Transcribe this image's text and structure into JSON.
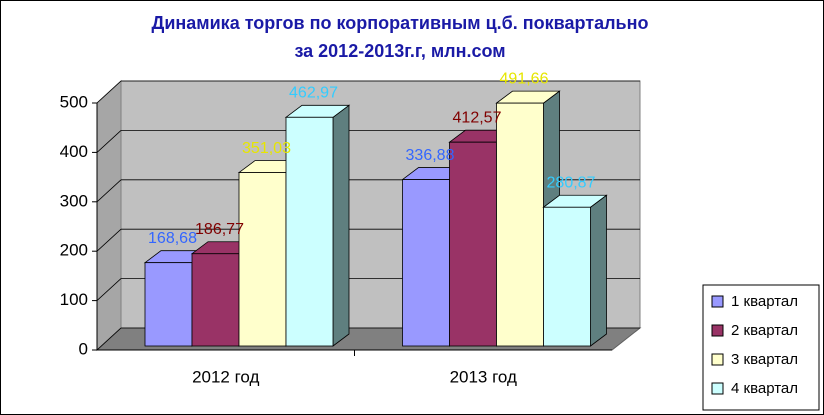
{
  "chart_data": {
    "type": "bar3d",
    "title": "Динамика торгов по корпоративным ц.б. поквартально",
    "subtitle": "за 2012-2013г.г, млн.сом",
    "categories": [
      "2012 год",
      "2013 год"
    ],
    "series": [
      {
        "name": "1 квартал",
        "color": "#9999ff",
        "label_color": "#3366ff",
        "values": [
          168.68,
          336.88
        ],
        "value_labels": [
          "168,68",
          "336,88"
        ]
      },
      {
        "name": "2 квартал",
        "color": "#993366",
        "label_color": "#800000",
        "values": [
          186.77,
          412.57
        ],
        "value_labels": [
          "186,77",
          "412,57"
        ]
      },
      {
        "name": "3 квартал",
        "color": "#ffffcc",
        "label_color": "#e6e600",
        "values": [
          351.03,
          491.66
        ],
        "value_labels": [
          "351,03",
          "491,66"
        ]
      },
      {
        "name": "4 квартал",
        "color": "#ccffff",
        "label_color": "#33ccff",
        "values": [
          462.97,
          280.87
        ],
        "value_labels": [
          "462,97",
          "280,87"
        ]
      }
    ],
    "ylim": [
      0,
      500
    ],
    "yticks": [
      0,
      100,
      200,
      300,
      400,
      500
    ],
    "grid": true
  }
}
